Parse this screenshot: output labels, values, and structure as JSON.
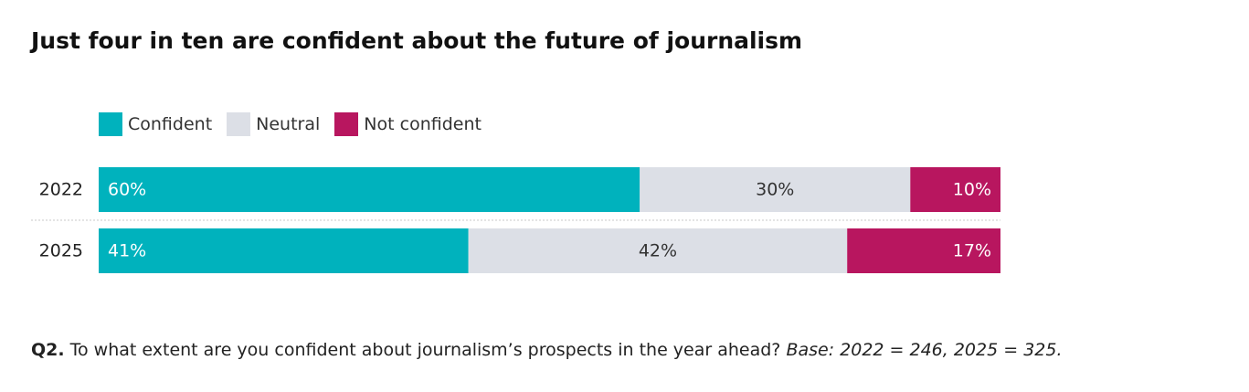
{
  "title": "Just four in ten are confident about the future of journalism",
  "legend": [
    {
      "label": "Confident",
      "color": "#00b2bd"
    },
    {
      "label": "Neutral",
      "color": "#dcdfe6"
    },
    {
      "label": "Not confident",
      "color": "#b8165f"
    }
  ],
  "footnote": {
    "question_number": "Q2.",
    "question": "To what extent are you confident about journalism’s prospects in the year ahead?",
    "base": "Base: 2022 = 246, 2025 = 325."
  },
  "chart_data": {
    "type": "bar",
    "orientation": "horizontal",
    "stacked": true,
    "normalized": "100%",
    "categories": [
      "2022",
      "2025"
    ],
    "series": [
      {
        "name": "Confident",
        "values": [
          60,
          41
        ],
        "labels": [
          "60%",
          "41%"
        ],
        "color": "#00b2bd",
        "label_color": "#ffffff",
        "label_align": "left"
      },
      {
        "name": "Neutral",
        "values": [
          30,
          42
        ],
        "labels": [
          "30%",
          "42%"
        ],
        "color": "#dcdfe6",
        "label_color": "#333333",
        "label_align": "center"
      },
      {
        "name": "Not confident",
        "values": [
          10,
          17
        ],
        "labels": [
          "10%",
          "17%"
        ],
        "color": "#b8165f",
        "label_color": "#ffffff",
        "label_align": "right"
      }
    ],
    "xlim": [
      0,
      100
    ],
    "legend_position": "top-left",
    "grid": false
  }
}
